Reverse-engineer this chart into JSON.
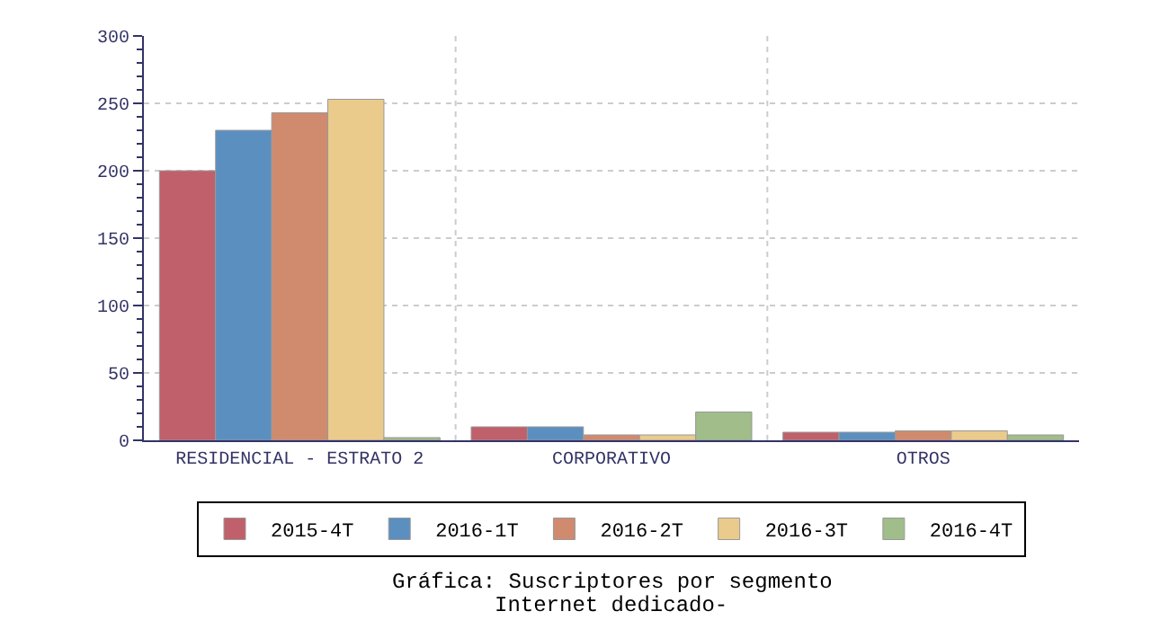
{
  "chart_data": {
    "type": "bar",
    "title": "Gráfica: Suscriptores por segmento",
    "subtitle": "Internet dedicado-",
    "categories": [
      "RESIDENCIAL - ESTRATO 2",
      "CORPORATIVO",
      "OTROS"
    ],
    "series": [
      {
        "name": "2015-4T",
        "color": "#c0606a",
        "values": [
          200,
          10,
          6
        ]
      },
      {
        "name": "2016-1T",
        "color": "#5b8fc0",
        "values": [
          230,
          10,
          6
        ]
      },
      {
        "name": "2016-2T",
        "color": "#d08a6e",
        "values": [
          243,
          4,
          7
        ]
      },
      {
        "name": "2016-3T",
        "color": "#eacb8c",
        "values": [
          253,
          4,
          7
        ]
      },
      {
        "name": "2016-4T",
        "color": "#a0bd8a",
        "values": [
          2,
          21,
          4
        ]
      }
    ],
    "ylim": [
      0,
      300
    ],
    "yticks": [
      0,
      50,
      100,
      150,
      200,
      250,
      300
    ],
    "grid": true,
    "legend": "bottom"
  }
}
